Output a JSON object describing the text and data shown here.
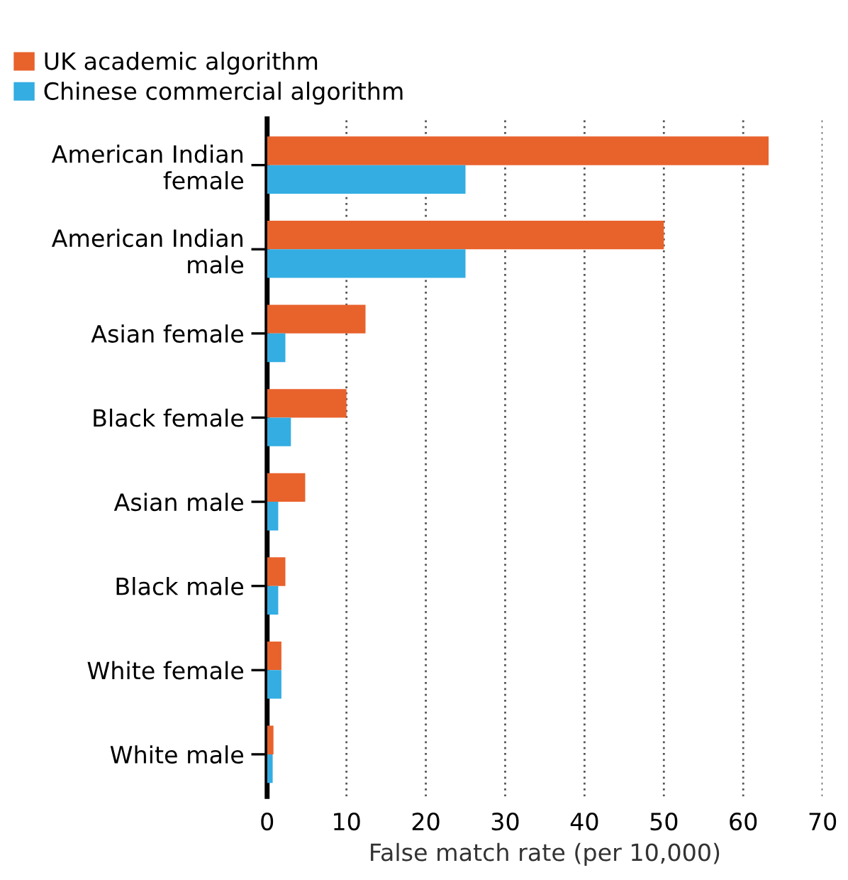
{
  "chart_data": {
    "type": "bar",
    "orientation": "horizontal",
    "categories": [
      "American Indian\nfemale",
      "American Indian\nmale",
      "Asian female",
      "Black female",
      "Asian male",
      "Black male",
      "White female",
      "White male"
    ],
    "series": [
      {
        "name": "UK academic algorithm",
        "color": "#e8622c",
        "values": [
          63.2,
          50,
          12.4,
          10,
          4.8,
          2.3,
          1.8,
          0.8
        ]
      },
      {
        "name": "Chinese commercial algorithm",
        "color": "#33ade2",
        "values": [
          25,
          25,
          2.3,
          3.0,
          1.4,
          1.4,
          1.8,
          0.7
        ]
      }
    ],
    "xlabel": "False match rate (per 10,000)",
    "xlim": [
      0,
      70
    ],
    "xticks": [
      0,
      10,
      20,
      30,
      40,
      50,
      60,
      70
    ],
    "grid": "x",
    "legend": "top left"
  }
}
